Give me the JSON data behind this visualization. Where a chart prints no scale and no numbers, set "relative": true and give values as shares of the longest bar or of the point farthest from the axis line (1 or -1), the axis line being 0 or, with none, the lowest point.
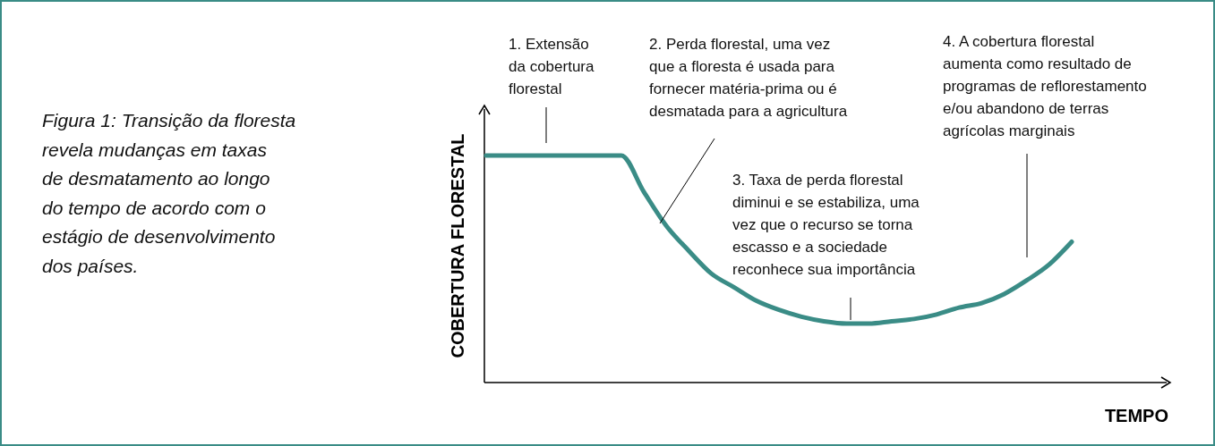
{
  "chart_data": {
    "type": "line",
    "relative": true,
    "color": "#3a8c86",
    "xlabel": "TEMPO",
    "ylabel": "COBERTURA FLORESTAL",
    "categories": [
      null,
      null,
      null,
      null,
      null,
      null,
      null,
      null,
      null,
      null,
      null,
      null,
      null,
      null,
      null,
      null,
      null,
      null,
      null,
      null,
      null,
      null,
      null,
      null,
      null,
      null,
      null
    ],
    "values": [
      1,
      1,
      1,
      1,
      1,
      1,
      1,
      0.84,
      0.69,
      0.58,
      0.48,
      0.42,
      0.36,
      0.32,
      0.29,
      0.27,
      0.26,
      0.26,
      0.27,
      0.28,
      0.3,
      0.33,
      0.35,
      0.39,
      0.45,
      0.52,
      0.62
    ],
    "annotations": [
      "Figura 1: Transição da floresta\nrevela mudanças em taxas\nde desmatamento ao longo\ndo tempo de acordo com o\nestágio de desenvolvimento\ndos países.",
      "1. Extensão\nda cobertura\nflorestal",
      "2. Perda florestal, uma vez\nque a floresta é usada para\nfornecer matéria-prima ou é\ndesmatada para a agricultura",
      "3. Taxa de perda florestal\ndiminui e se estabiliza, uma\nvez que o recurso se torna\nescasso e a sociedade\nreconhece sua importância",
      "4. A cobertura florestal\naumenta como resultado de\nprogramas de reflorestamento\ne/ou abandono de terras\nagrícolas marginais"
    ]
  }
}
